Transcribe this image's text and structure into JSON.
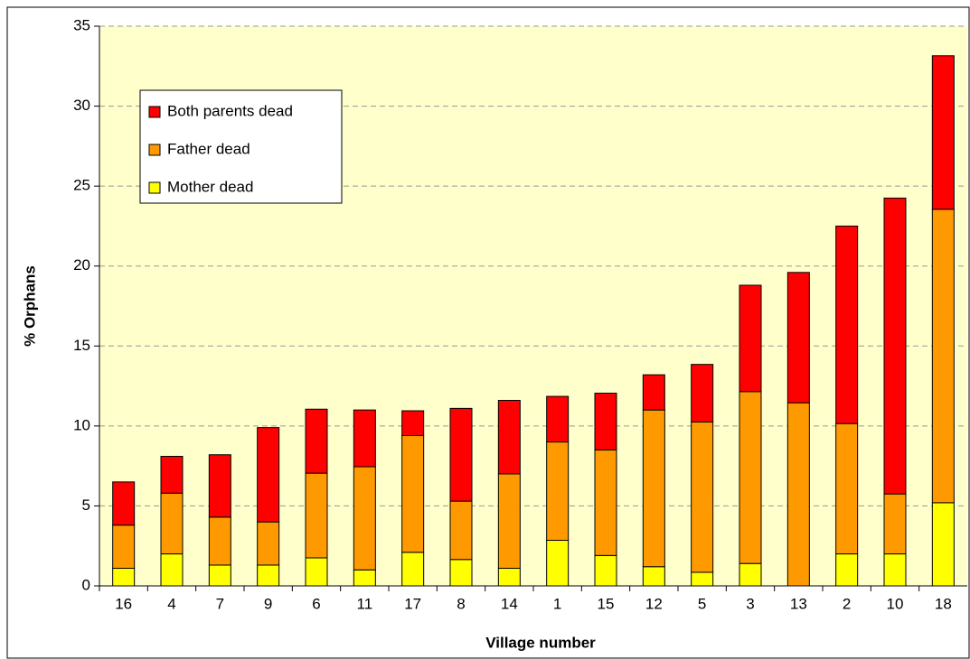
{
  "chart_data": {
    "type": "stacked_bar",
    "x_label": "Village number",
    "y_label": "% Orphans",
    "categories": [
      "16",
      "4",
      "7",
      "9",
      "6",
      "11",
      "17",
      "8",
      "14",
      "1",
      "15",
      "12",
      "5",
      "3",
      "13",
      "2",
      "10",
      "18"
    ],
    "series": [
      {
        "name": "Mother dead",
        "color": "#ffff00",
        "values": [
          1.1,
          2.0,
          1.3,
          1.3,
          1.75,
          1.0,
          2.1,
          1.65,
          1.1,
          2.85,
          1.9,
          1.2,
          0.85,
          1.4,
          0,
          2.0,
          2.0,
          5.2
        ]
      },
      {
        "name": "Father dead",
        "color": "#ff9900",
        "values": [
          2.7,
          3.8,
          3.0,
          2.7,
          5.3,
          6.45,
          7.3,
          3.65,
          5.9,
          6.15,
          6.6,
          9.8,
          9.4,
          10.75,
          11.45,
          8.15,
          3.75,
          18.35
        ]
      },
      {
        "name": "Both parents dead",
        "color": "#ff0000",
        "values": [
          2.7,
          2.3,
          3.9,
          5.9,
          4.0,
          3.55,
          1.55,
          5.8,
          4.6,
          2.85,
          3.55,
          2.2,
          3.6,
          6.65,
          8.15,
          12.35,
          18.5,
          9.6
        ]
      }
    ],
    "ylim": [
      0,
      35
    ],
    "yticks": [
      0,
      5,
      10,
      15,
      20,
      25,
      30,
      35
    ],
    "grid": true,
    "legend": "upper left",
    "background": "#ffffcc"
  }
}
